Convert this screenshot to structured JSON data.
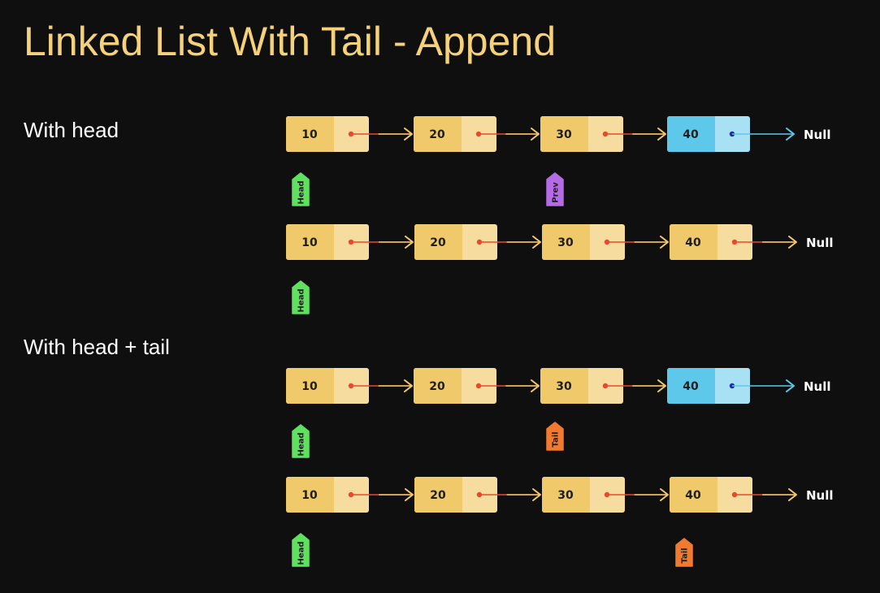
{
  "title": "Linked List With Tail - Append",
  "sections": [
    {
      "label": "With head"
    },
    {
      "label": "With head + tail"
    }
  ],
  "null_label": "Null",
  "colors": {
    "node": "#f0c96a",
    "node_next": "#f6dc9e",
    "node_new": "#5ec8ea",
    "node_new_next": "#a8e0f4",
    "arrow": "#f0c96a",
    "arrow_new": "#5ec8ea",
    "dot": "#e54a2e",
    "dot_new": "#1a2f9a",
    "head": "#5fe05f",
    "prev": "#b56ae6",
    "tail": "#f07a30"
  },
  "rows": [
    {
      "nodes": [
        "10",
        "20",
        "30",
        "40"
      ],
      "highlight_last": true,
      "pointers": [
        {
          "label": "Head",
          "node": 0,
          "kind": "head"
        },
        {
          "label": "Prev",
          "node": 2,
          "kind": "prev"
        }
      ]
    },
    {
      "nodes": [
        "10",
        "20",
        "30",
        "40"
      ],
      "highlight_last": false,
      "pointers": [
        {
          "label": "Head",
          "node": 0,
          "kind": "head"
        }
      ]
    },
    {
      "nodes": [
        "10",
        "20",
        "30",
        "40"
      ],
      "highlight_last": true,
      "pointers": [
        {
          "label": "Head",
          "node": 0,
          "kind": "head"
        },
        {
          "label": "Tail",
          "node": 2,
          "kind": "tail"
        }
      ]
    },
    {
      "nodes": [
        "10",
        "20",
        "30",
        "40"
      ],
      "highlight_last": false,
      "pointers": [
        {
          "label": "Head",
          "node": 0,
          "kind": "head"
        },
        {
          "label": "Tail",
          "node": 3,
          "kind": "tail"
        }
      ]
    }
  ]
}
